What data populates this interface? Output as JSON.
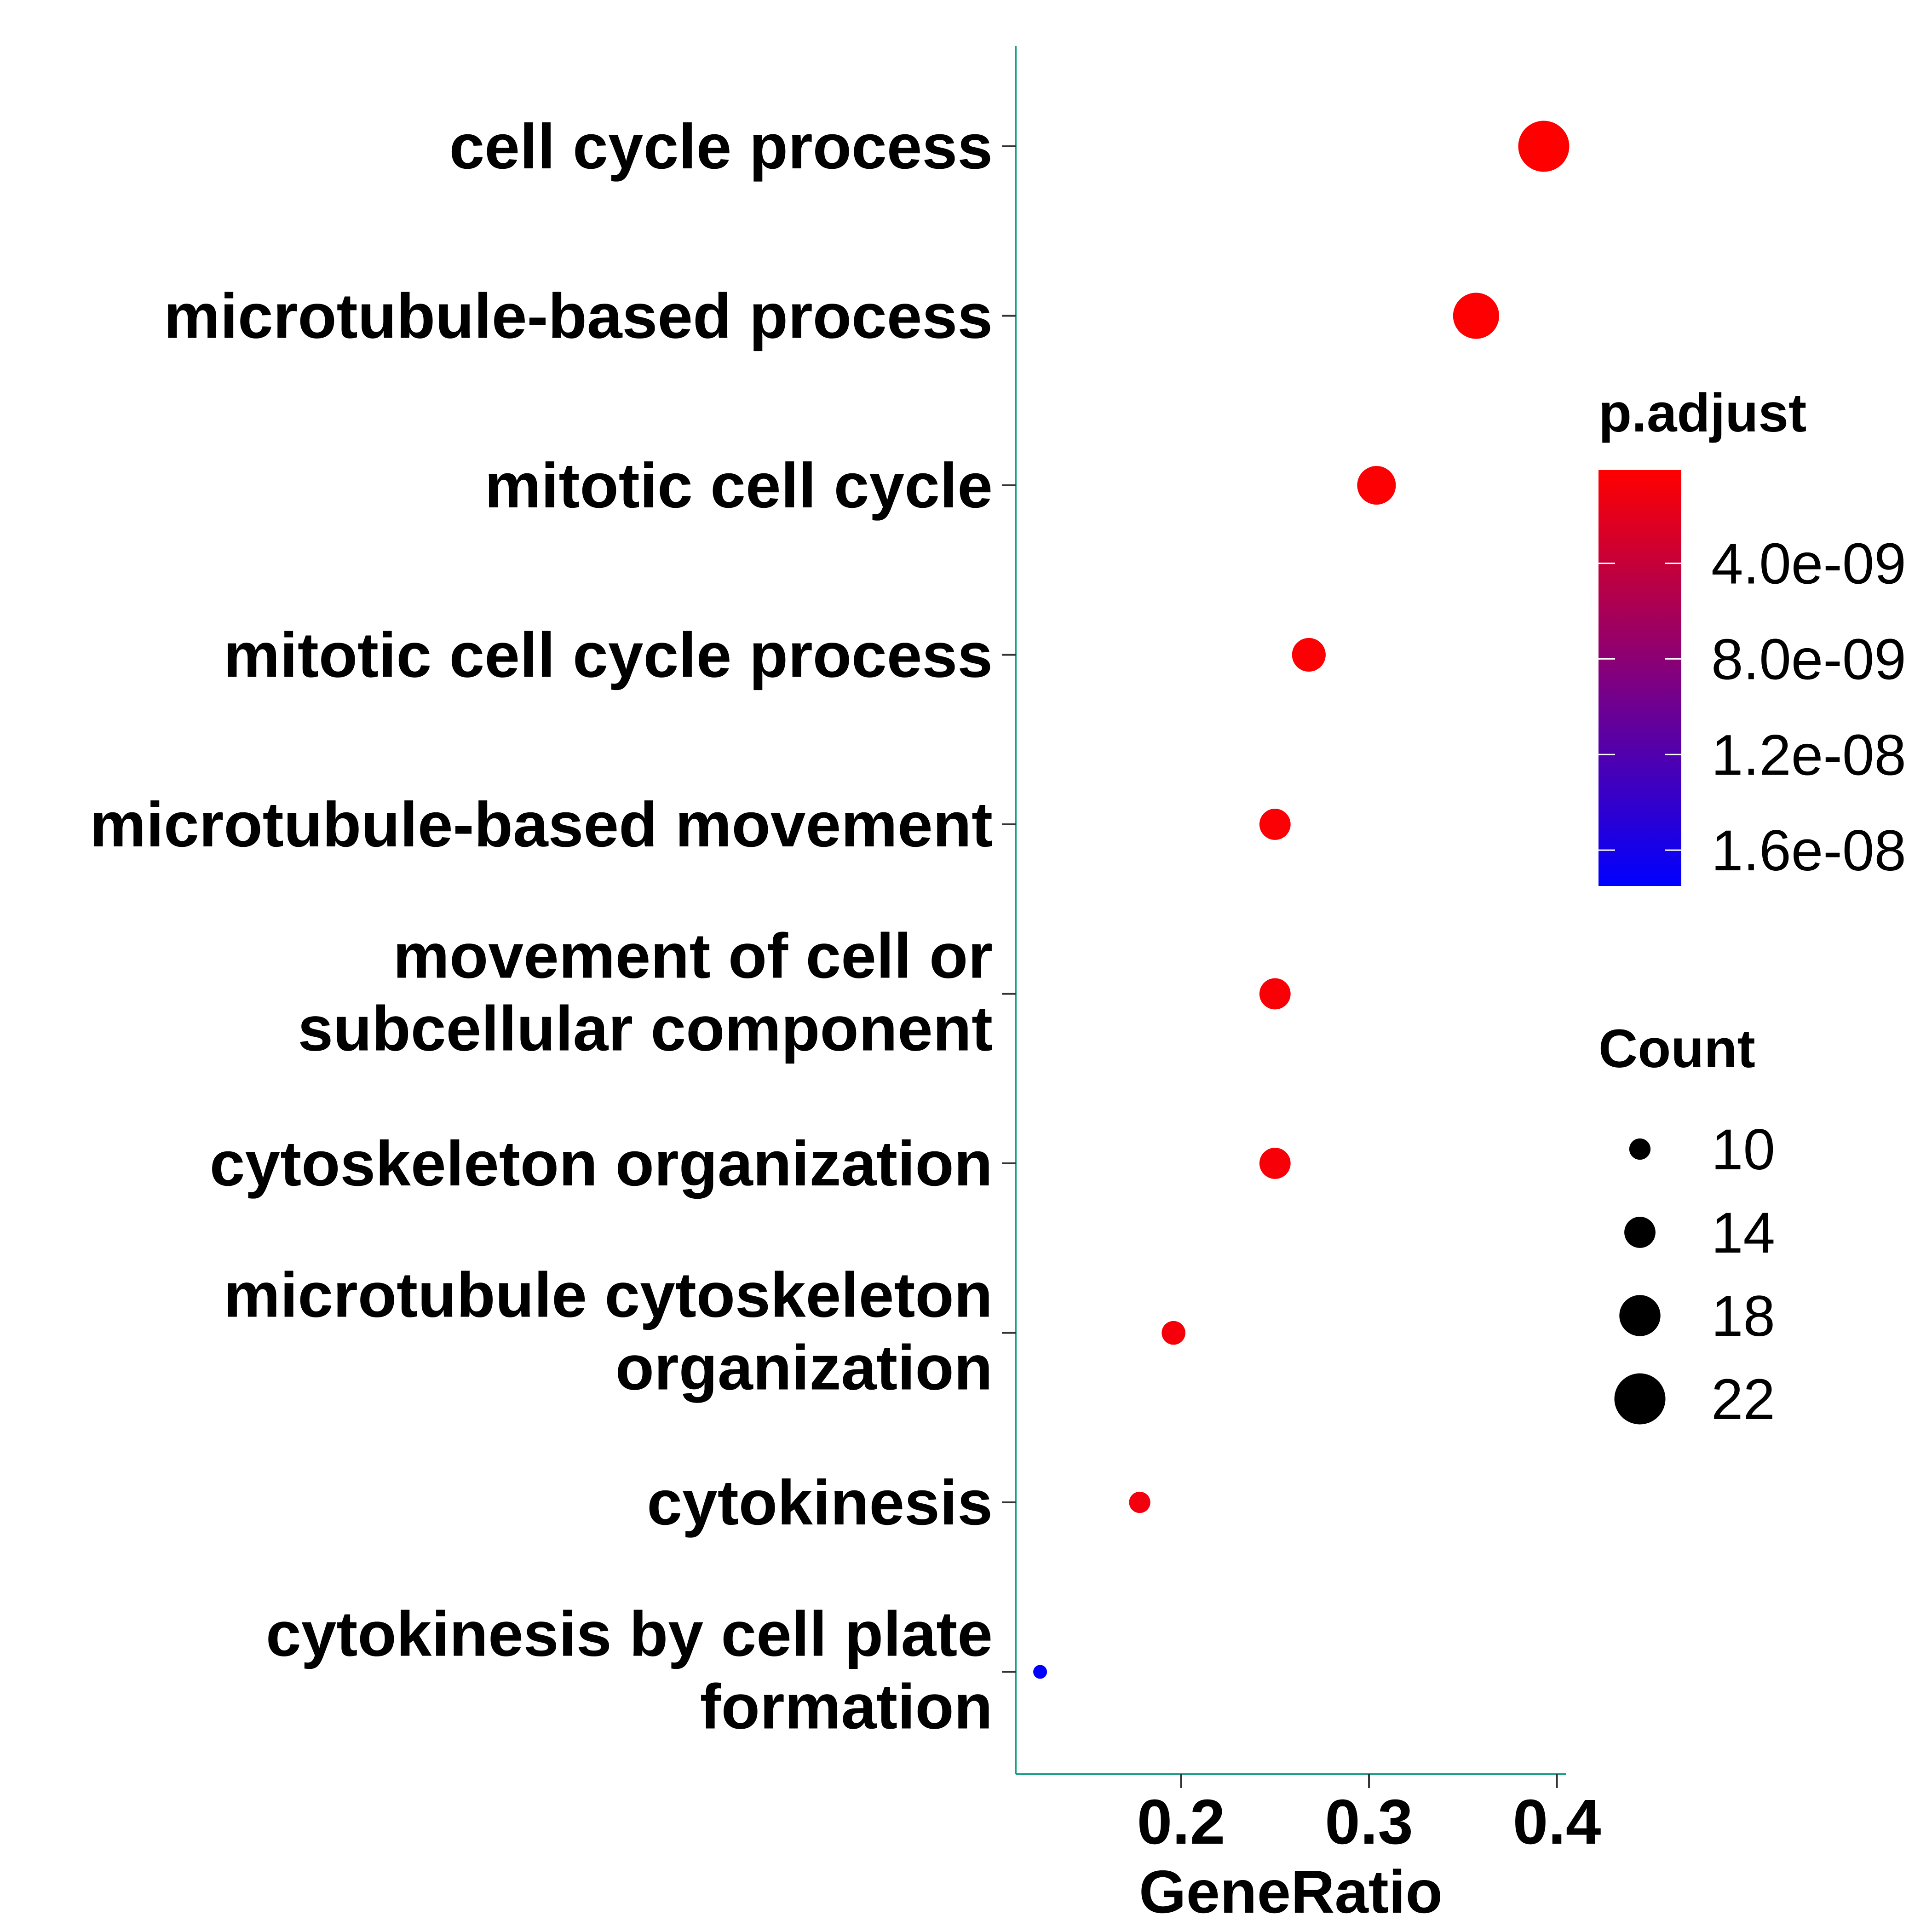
{
  "chart_data": {
    "type": "scatter",
    "xlabel": "GeneRatio",
    "ylabel": "",
    "xlim": [
      0.112,
      0.405
    ],
    "x_ticks": [
      "0.2",
      "0.3",
      "0.4"
    ],
    "categories": [
      [
        "cell cycle process"
      ],
      [
        "microtubule-based process"
      ],
      [
        "mitotic cell cycle"
      ],
      [
        "mitotic cell cycle process"
      ],
      [
        "microtubule-based movement"
      ],
      [
        "movement of cell or",
        "subcellular component"
      ],
      [
        "cytoskeleton organization"
      ],
      [
        "microtubule cytoskeleton",
        "organization"
      ],
      [
        "cytokinesis"
      ],
      [
        "cytokinesis by cell plate",
        "formation"
      ]
    ],
    "points": [
      {
        "x": 0.393,
        "count": 22,
        "padj": 1e-10
      },
      {
        "x": 0.357,
        "count": 20,
        "padj": 2e-10
      },
      {
        "x": 0.304,
        "count": 17,
        "padj": 3e-10
      },
      {
        "x": 0.268,
        "count": 15,
        "padj": 3e-10
      },
      {
        "x": 0.25,
        "count": 14,
        "padj": 4e-10
      },
      {
        "x": 0.25,
        "count": 14,
        "padj": 5e-10
      },
      {
        "x": 0.25,
        "count": 14,
        "padj": 6e-10
      },
      {
        "x": 0.196,
        "count": 11,
        "padj": 8e-10
      },
      {
        "x": 0.178,
        "count": 10,
        "padj": 1e-09
      },
      {
        "x": 0.125,
        "count": 7,
        "padj": 1.75e-08
      }
    ],
    "color_legend": {
      "title": "p.adjust",
      "ticks": [
        "4.0e-09",
        "8.0e-09",
        "1.2e-08",
        "1.6e-08"
      ],
      "tick_values": [
        4e-09,
        8e-09,
        1.2e-08,
        1.6e-08
      ],
      "range": [
        1e-10,
        1.75e-08
      ],
      "low_color": "#ff0000",
      "high_color": "#0000ff"
    },
    "size_legend": {
      "title": "Count",
      "values": [
        "10",
        "14",
        "18",
        "22"
      ]
    },
    "axis_color": "#1a9e86"
  }
}
